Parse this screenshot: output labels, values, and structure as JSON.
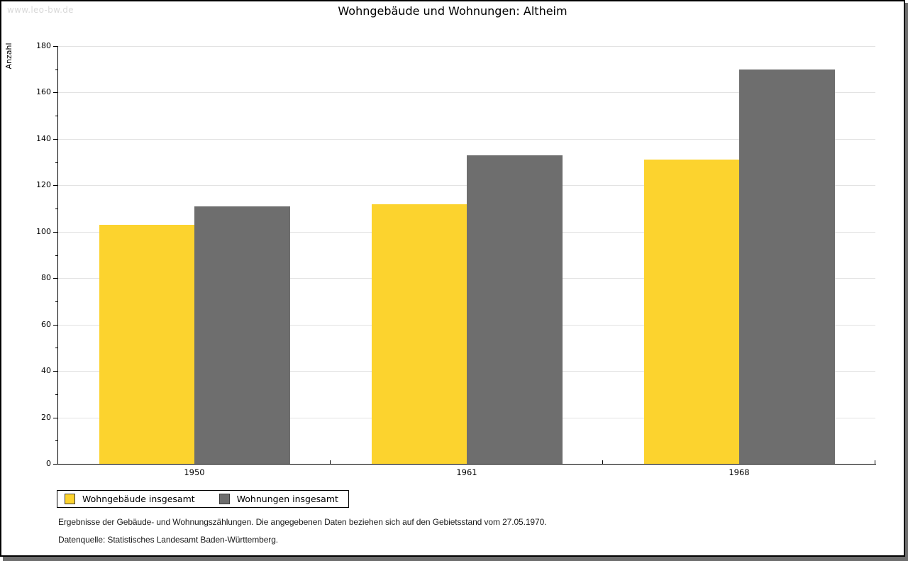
{
  "watermark": "www.leo-bw.de",
  "chart_data": {
    "type": "bar",
    "title": "Wohngebäude und Wohnungen: Altheim",
    "ylabel": "Anzahl",
    "categories": [
      "1950",
      "1961",
      "1968"
    ],
    "series": [
      {
        "name": "Wohngebäude insgesamt",
        "color": "#FCD32E",
        "values": [
          103,
          112,
          131
        ]
      },
      {
        "name": "Wohnungen insgesamt",
        "color": "#6E6E6E",
        "values": [
          111,
          133,
          170
        ]
      }
    ],
    "ylim": [
      0,
      180
    ],
    "ytick_step": 20,
    "minor_tick_step": 10,
    "grid": "horizontal-major",
    "legend_position": "bottom-left"
  },
  "notes": [
    "Ergebnisse der Gebäude- und Wohnungszählungen. Die angegebenen Daten beziehen sich auf den Gebietsstand vom 27.05.1970.",
    "Datenquelle: Statistisches Landesamt Baden-Württemberg."
  ],
  "colors": {
    "grid": "#E3E3E3",
    "axis": "#000000",
    "frame_shadow": "#6E6E6E",
    "watermark": "#D9D9D9"
  }
}
